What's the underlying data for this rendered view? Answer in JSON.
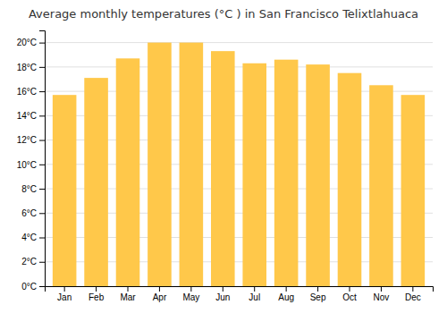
{
  "chart_data": {
    "type": "bar",
    "title": "Average monthly temperatures (°C ) in San Francisco Telixtlahuaca",
    "categories": [
      "Jan",
      "Feb",
      "Mar",
      "Apr",
      "May",
      "Jun",
      "Jul",
      "Aug",
      "Sep",
      "Oct",
      "Nov",
      "Dec"
    ],
    "values": [
      15.7,
      17.1,
      18.7,
      20.0,
      20.0,
      19.3,
      18.3,
      18.6,
      18.2,
      17.5,
      16.5,
      15.7
    ],
    "color": "#FFC84A",
    "ylim": [
      0,
      21
    ],
    "yticks": [
      {
        "value": 0,
        "label": "0°C"
      },
      {
        "value": 2,
        "label": "2°C"
      },
      {
        "value": 4,
        "label": "4°C"
      },
      {
        "value": 6,
        "label": "6°C"
      },
      {
        "value": 8,
        "label": "8°C"
      },
      {
        "value": 10,
        "label": "10°C"
      },
      {
        "value": 12,
        "label": "12°C"
      },
      {
        "value": 14,
        "label": "14°C"
      },
      {
        "value": 16,
        "label": "16°C"
      },
      {
        "value": 18,
        "label": "18°C"
      },
      {
        "value": 20,
        "label": "20°C"
      }
    ],
    "grid": true
  }
}
